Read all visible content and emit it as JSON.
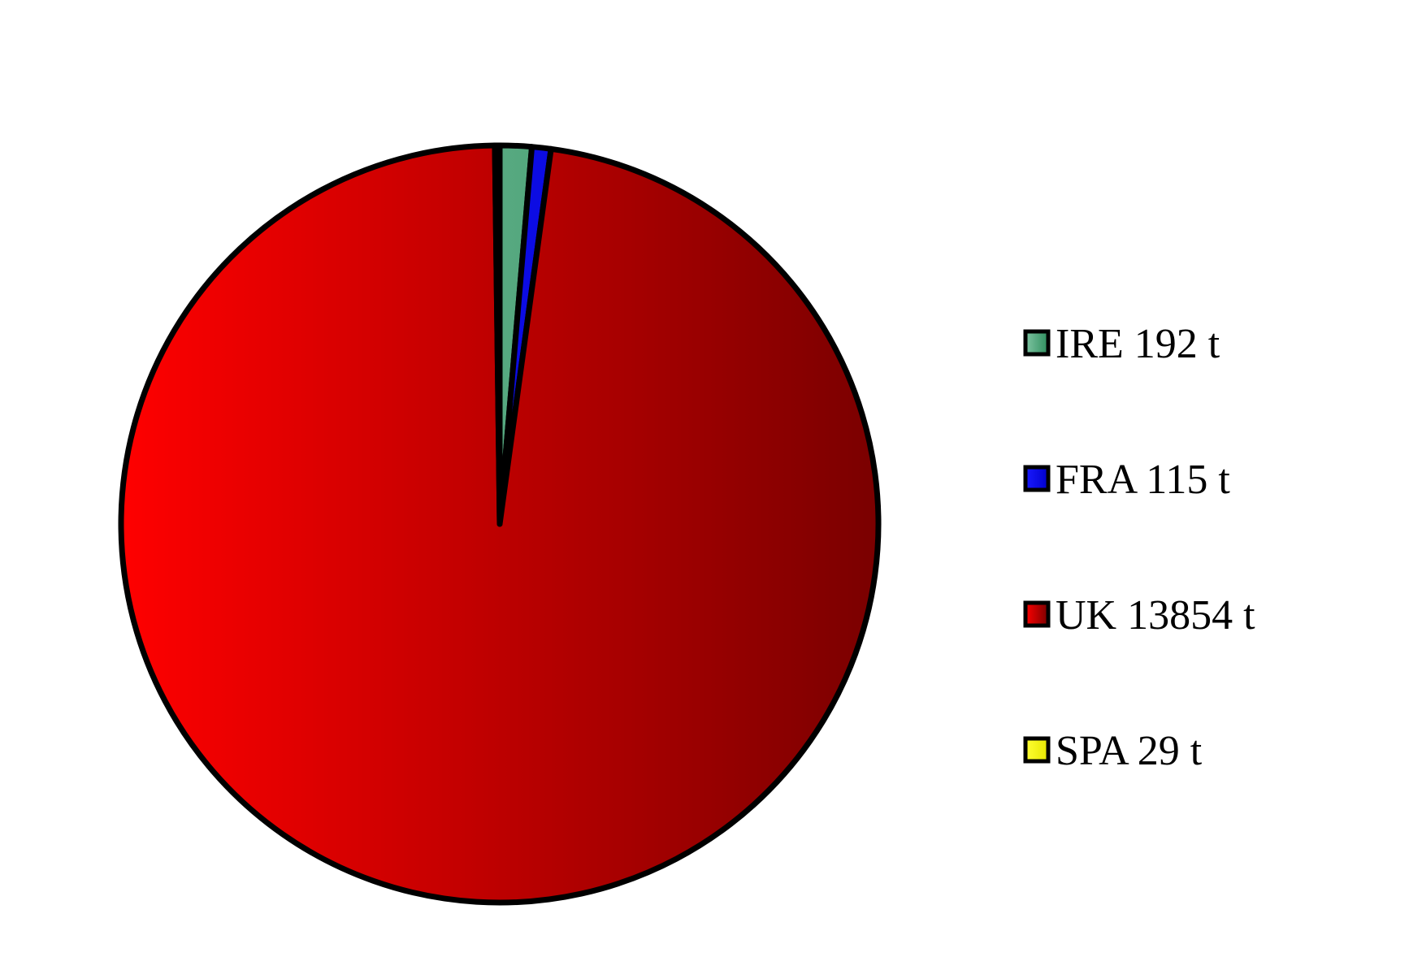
{
  "chart_data": {
    "type": "pie",
    "title": "",
    "unit": "t",
    "start_angle_deg": 0,
    "direction": "clockwise",
    "legend_position": "right",
    "slices": [
      {
        "label": "IRE 192 t",
        "name": "IRE",
        "value": 192,
        "color_light": "#7fc4a2",
        "color_dark": "#2f8f5f"
      },
      {
        "label": "FRA 115 t",
        "name": "FRA",
        "value": 115,
        "color_light": "#1a1aff",
        "color_dark": "#0000cc"
      },
      {
        "label": "UK 13854 t",
        "name": "UK",
        "value": 13854,
        "color_light": "#ff0000",
        "color_dark": "#7a0000"
      },
      {
        "label": "SPA 29 t",
        "name": "SPA",
        "value": 29,
        "color_light": "#ffff33",
        "color_dark": "#e6e600"
      }
    ]
  }
}
